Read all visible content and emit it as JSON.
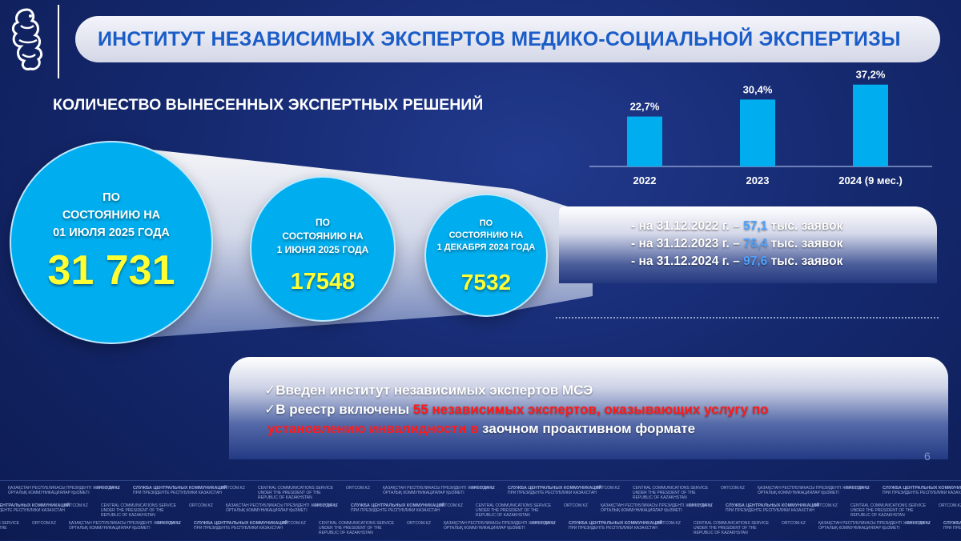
{
  "header": {
    "title": "ИНСТИТУТ НЕЗАВИСИМЫХ ЭКСПЕРТОВ МЕДИКО-СОЦИАЛЬНОЙ ЭКСПЕРТИЗЫ"
  },
  "subtitle": "КОЛИЧЕСТВО ВЫНЕСЕННЫХ ЭКСПЕРТНЫХ РЕШЕНИЙ",
  "circles": [
    {
      "label_lines": [
        "ПО",
        "СОСТОЯНИЮ НА",
        "01 ИЮЛЯ 2025 ГОДА"
      ],
      "value": "31 731"
    },
    {
      "label_lines": [
        "ПО",
        "СОСТОЯНИЮ НА",
        "1 ИЮНЯ 2025 ГОДА"
      ],
      "value": "17548"
    },
    {
      "label_lines": [
        "ПО",
        "СОСТОЯНИЮ НА",
        "1 ДЕКАБРЯ 2024 ГОДА"
      ],
      "value": "7532"
    }
  ],
  "chart_data": {
    "type": "bar",
    "categories": [
      "2022",
      "2023",
      "2024 (9 мес.)"
    ],
    "values": [
      22.7,
      30.4,
      37.2
    ],
    "data_labels": [
      "22,7%",
      "30,4%",
      "37,2%"
    ],
    "ylim": [
      0,
      40
    ],
    "grid": false,
    "bar_color": "#00aeef"
  },
  "stats": [
    {
      "prefix": "- на 31.12.2022 г. – ",
      "value": "57,1",
      "suffix": " тыс. заявок"
    },
    {
      "prefix": "- на 31.12.2023 г. – ",
      "value": "76,4",
      "suffix": " тыс. заявок"
    },
    {
      "prefix": "- на 31.12.2024 г. – ",
      "value": "97,6",
      "suffix": " тыс. заявок"
    }
  ],
  "checklist": {
    "mark": "✓",
    "item1": "Введен институт независимых экспертов МСЭ",
    "item2_prefix": "В реестр включены ",
    "item2_number": "55",
    "item2_red": "  независимых экспертов, оказывающих услугу по",
    "item2_cont_red": "установлению инвалидности в",
    "item2_cont_white": "  заочном проактивном формате"
  },
  "page_number": "6",
  "footer": {
    "org_ru_1": "СЛУЖБА ЦЕНТРАЛЬНЫХ КОММУНИКАЦИЙ",
    "org_ru_2": "ПРИ ПРЕЗИДЕНТЕ РЕСПУБЛИКИ КАЗАХСТАН",
    "org_en_1": "CENTRAL COMMUNICATIONS SERVICE",
    "org_en_2": "UNDER THE PRESIDENT OF THE",
    "org_en_3": "REPUBLIC OF KAZAKHSTAN",
    "org_kz_1": "ҚАЗАҚСТАН РЕСПУБЛИКАСЫ ПРЕЗИДЕНТІ ЖАНЫНДАҒЫ",
    "org_kz_2": "ОРТАЛЫҚ КОММУНИКАЦИЯЛАР ҚЫЗМЕТІ",
    "site": "ORTCOM.KZ"
  }
}
